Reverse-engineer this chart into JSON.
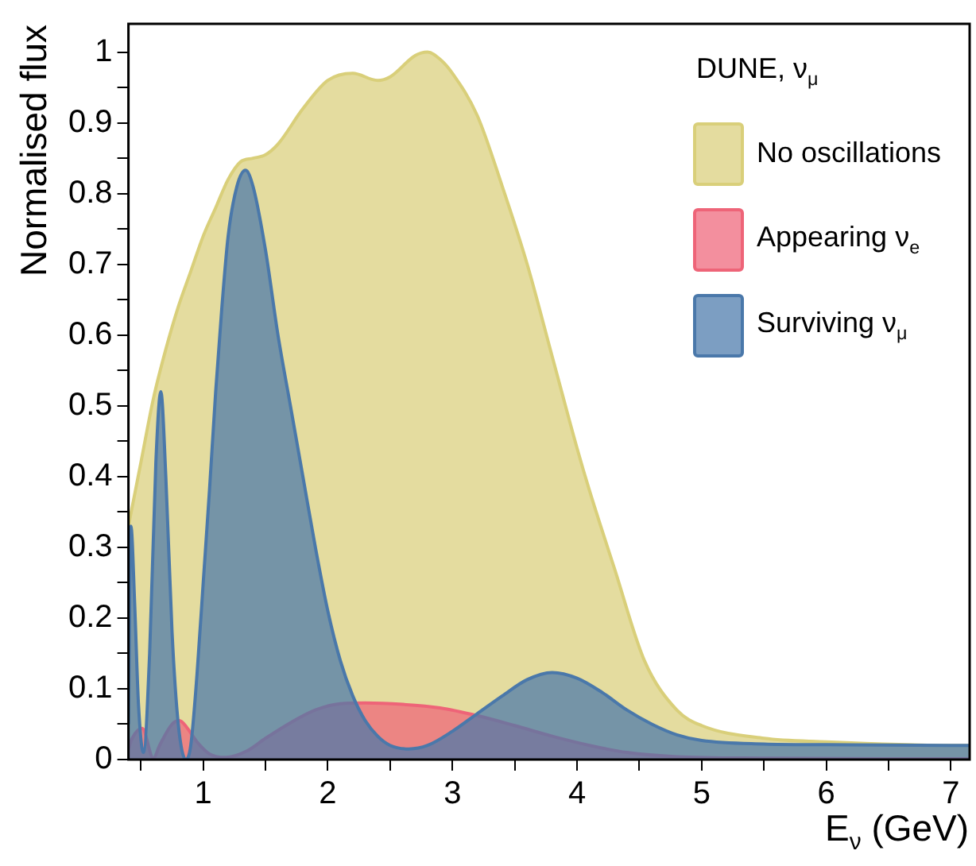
{
  "chart_data": {
    "type": "area",
    "xlabel": "E$_{ν}$ (GeV)",
    "ylabel": "Normalised flux",
    "legend_title": "DUNE, ν$_{μ}$",
    "xlim": [
      0.4,
      7.15
    ],
    "ylim": [
      0,
      1.04
    ],
    "xticks": [
      {
        "value": 0.5,
        "label": null
      },
      1,
      {
        "value": 1.5,
        "label": null
      },
      2,
      {
        "value": 2.5,
        "label": null
      },
      3,
      {
        "value": 3.5,
        "label": null
      },
      4,
      {
        "value": 4.5,
        "label": null
      },
      5,
      {
        "value": 5.5,
        "label": null
      },
      6,
      {
        "value": 6.5,
        "label": null
      },
      7
    ],
    "yticks": [
      0,
      {
        "value": 0.05,
        "label": null
      },
      0.1,
      {
        "value": 0.15,
        "label": null
      },
      0.2,
      {
        "value": 0.25,
        "label": null
      },
      0.3,
      {
        "value": 0.35,
        "label": null
      },
      0.4,
      {
        "value": 0.45,
        "label": null
      },
      0.5,
      {
        "value": 0.55,
        "label": null
      },
      0.6,
      {
        "value": 0.65,
        "label": null
      },
      0.7,
      {
        "value": 0.75,
        "label": null
      },
      0.8,
      {
        "value": 0.85,
        "label": null
      },
      0.9,
      {
        "value": 0.95,
        "label": null
      },
      1
    ],
    "grid": false,
    "legend": "top right",
    "series": [
      {
        "name": "No oscillations",
        "color": "#d9cf7a",
        "x": [
          0.4,
          0.5,
          0.6,
          0.7,
          0.8,
          0.9,
          1.0,
          1.1,
          1.2,
          1.3,
          1.4,
          1.5,
          1.6,
          1.8,
          2.0,
          2.2,
          2.4,
          2.5,
          2.7,
          2.8,
          2.9,
          3.0,
          3.2,
          3.4,
          3.6,
          3.8,
          4.0,
          4.1,
          4.3,
          4.54,
          4.8,
          5.0,
          5.5,
          6.0,
          7.0,
          7.15
        ],
        "values": [
          0.33,
          0.42,
          0.51,
          0.58,
          0.64,
          0.69,
          0.74,
          0.78,
          0.82,
          0.845,
          0.85,
          0.855,
          0.87,
          0.92,
          0.96,
          0.97,
          0.96,
          0.965,
          0.995,
          1.0,
          0.99,
          0.97,
          0.91,
          0.81,
          0.7,
          0.57,
          0.44,
          0.38,
          0.27,
          0.14,
          0.07,
          0.048,
          0.03,
          0.025,
          0.02,
          0.02
        ]
      },
      {
        "name": "Appearing ν$_{e}$",
        "color": "#ee6478",
        "x": [
          0.4,
          0.43,
          0.51,
          0.6,
          0.65,
          0.75,
          0.81,
          0.87,
          0.95,
          1.05,
          1.18,
          1.35,
          1.5,
          1.7,
          1.9,
          2.1,
          2.3,
          2.6,
          2.9,
          3.2,
          3.5,
          3.8,
          4.1,
          4.4,
          4.8,
          5.5,
          7.15
        ],
        "values": [
          0.015,
          0.03,
          0.044,
          0.002,
          0.02,
          0.05,
          0.055,
          0.045,
          0.025,
          0.008,
          0.003,
          0.012,
          0.03,
          0.052,
          0.07,
          0.079,
          0.08,
          0.078,
          0.073,
          0.062,
          0.048,
          0.033,
          0.02,
          0.01,
          0.004,
          0.002,
          0.001
        ]
      },
      {
        "name": "Surviving ν$_{μ}$",
        "color": "#4a78aa",
        "x": [
          0.4,
          0.42,
          0.45,
          0.48,
          0.52,
          0.57,
          0.62,
          0.66,
          0.7,
          0.75,
          0.8,
          0.86,
          0.9,
          0.95,
          1.0,
          1.05,
          1.1,
          1.15,
          1.2,
          1.27,
          1.34,
          1.4,
          1.5,
          1.6,
          1.7,
          1.8,
          1.9,
          2.0,
          2.1,
          2.2,
          2.3,
          2.4,
          2.5,
          2.65,
          2.8,
          3.0,
          3.2,
          3.4,
          3.6,
          3.8,
          4.0,
          4.2,
          4.4,
          4.6,
          4.8,
          5.0,
          5.5,
          6.0,
          7.0,
          7.15
        ],
        "values": [
          0.05,
          0.33,
          0.22,
          0.08,
          0.01,
          0.15,
          0.42,
          0.52,
          0.4,
          0.18,
          0.05,
          0.0,
          0.02,
          0.12,
          0.25,
          0.38,
          0.52,
          0.64,
          0.74,
          0.81,
          0.833,
          0.81,
          0.72,
          0.6,
          0.5,
          0.4,
          0.3,
          0.21,
          0.14,
          0.09,
          0.055,
          0.033,
          0.02,
          0.015,
          0.02,
          0.04,
          0.065,
          0.09,
          0.113,
          0.123,
          0.115,
          0.095,
          0.07,
          0.05,
          0.035,
          0.027,
          0.022,
          0.021,
          0.02,
          0.02
        ]
      }
    ]
  }
}
